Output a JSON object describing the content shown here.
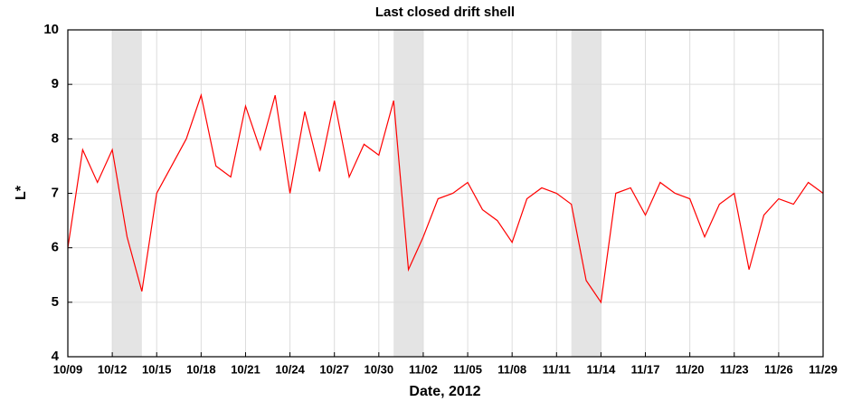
{
  "chart_data": {
    "type": "line",
    "title": "Last closed drift shell",
    "xlabel": "Date, 2012",
    "ylabel": "L*",
    "x": [
      "2012-10-09",
      "2012-10-10",
      "2012-10-11",
      "2012-10-12",
      "2012-10-13",
      "2012-10-14",
      "2012-10-15",
      "2012-10-16",
      "2012-10-17",
      "2012-10-18",
      "2012-10-19",
      "2012-10-20",
      "2012-10-21",
      "2012-10-22",
      "2012-10-23",
      "2012-10-24",
      "2012-10-25",
      "2012-10-26",
      "2012-10-27",
      "2012-10-28",
      "2012-10-29",
      "2012-10-30",
      "2012-10-31",
      "2012-11-01",
      "2012-11-02",
      "2012-11-03",
      "2012-11-04",
      "2012-11-05",
      "2012-11-06",
      "2012-11-07",
      "2012-11-08",
      "2012-11-09",
      "2012-11-10",
      "2012-11-11",
      "2012-11-12",
      "2012-11-13",
      "2012-11-14",
      "2012-11-15",
      "2012-11-16",
      "2012-11-17",
      "2012-11-18",
      "2012-11-19",
      "2012-11-20",
      "2012-11-21",
      "2012-11-22",
      "2012-11-23",
      "2012-11-24",
      "2012-11-25",
      "2012-11-26",
      "2012-11-27",
      "2012-11-28",
      "2012-11-29"
    ],
    "series": [
      {
        "color": "#ff0000",
        "values": [
          6.0,
          7.8,
          7.2,
          7.8,
          6.2,
          5.2,
          7.0,
          7.5,
          8.0,
          8.8,
          7.5,
          7.3,
          8.6,
          7.8,
          8.8,
          7.0,
          8.5,
          7.4,
          8.7,
          7.3,
          7.9,
          7.7,
          8.7,
          5.6,
          6.2,
          6.9,
          7.0,
          7.2,
          6.7,
          6.5,
          6.1,
          6.9,
          7.1,
          7.0,
          6.8,
          5.4,
          5.0,
          7.0,
          7.1,
          6.6,
          7.2,
          7.0,
          6.9,
          6.2,
          6.8,
          7.0,
          5.6,
          6.6,
          6.9,
          6.8,
          7.2,
          7.0
        ]
      }
    ],
    "shaded_intervals": [
      {
        "start": "2012-10-12",
        "end": "2012-10-14"
      },
      {
        "start": "2012-10-31",
        "end": "2012-11-02"
      },
      {
        "start": "2012-11-12",
        "end": "2012-11-14"
      }
    ],
    "shade_color": "#e4e4e4",
    "xlim": [
      "2012-10-09",
      "2012-11-29"
    ],
    "xticks": [
      {
        "value": "2012-10-09",
        "label": "10/09"
      },
      {
        "value": "2012-10-12",
        "label": "10/12"
      },
      {
        "value": "2012-10-15",
        "label": "10/15"
      },
      {
        "value": "2012-10-18",
        "label": "10/18"
      },
      {
        "value": "2012-10-21",
        "label": "10/21"
      },
      {
        "value": "2012-10-24",
        "label": "10/24"
      },
      {
        "value": "2012-10-27",
        "label": "10/27"
      },
      {
        "value": "2012-10-30",
        "label": "10/30"
      },
      {
        "value": "2012-11-02",
        "label": "11/02"
      },
      {
        "value": "2012-11-05",
        "label": "11/05"
      },
      {
        "value": "2012-11-08",
        "label": "11/08"
      },
      {
        "value": "2012-11-11",
        "label": "11/11"
      },
      {
        "value": "2012-11-14",
        "label": "11/14"
      },
      {
        "value": "2012-11-17",
        "label": "11/17"
      },
      {
        "value": "2012-11-20",
        "label": "11/20"
      },
      {
        "value": "2012-11-23",
        "label": "11/23"
      },
      {
        "value": "2012-11-26",
        "label": "11/26"
      },
      {
        "value": "2012-11-29",
        "label": "11/29"
      }
    ],
    "ylim": [
      4,
      10
    ],
    "yticks": [
      4,
      5,
      6,
      7,
      8,
      9,
      10
    ],
    "grid": true
  }
}
